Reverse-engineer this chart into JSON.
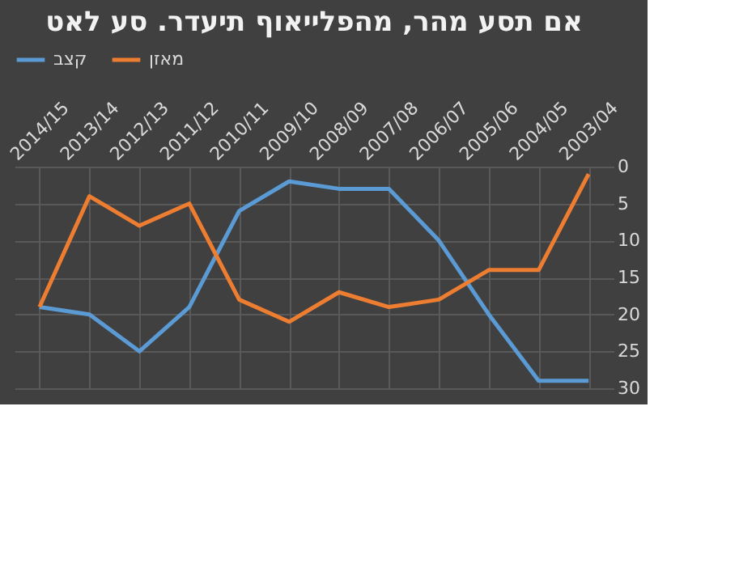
{
  "chart_data": {
    "type": "line",
    "title": "אם תסע מהר, מהפלייאוף תיעדר. סע לאט",
    "categories": [
      "2014/15",
      "2013/14",
      "2012/13",
      "2011/12",
      "2010/11",
      "2009/10",
      "2008/09",
      "2007/08",
      "2006/07",
      "2005/06",
      "2004/05",
      "2003/04"
    ],
    "series": [
      {
        "name": "קצב",
        "color": "#5b9bd5",
        "values": [
          19,
          20,
          25,
          19,
          6,
          2,
          3,
          3,
          10,
          20,
          29,
          29
        ]
      },
      {
        "name": "מאזן",
        "color": "#ed7d31",
        "values": [
          19,
          4,
          8,
          5,
          18,
          21,
          17,
          19,
          18,
          14,
          14,
          1
        ]
      }
    ],
    "ylim": [
      30,
      0
    ],
    "yticks": [
      0,
      5,
      10,
      15,
      20,
      25,
      30
    ],
    "grid": true,
    "legend": "top",
    "marker": "none",
    "line_style": "solid"
  }
}
